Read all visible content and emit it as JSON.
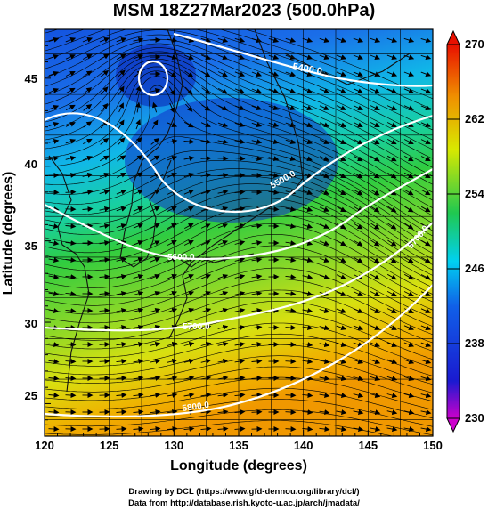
{
  "title": "MSM 18Z27Mar2023 (500.0hPa)",
  "x_axis": {
    "label": "Longitude (degrees)",
    "ticks": [
      "120",
      "125",
      "130",
      "135",
      "140",
      "145",
      "150"
    ],
    "range": [
      120,
      150
    ]
  },
  "y_axis": {
    "label": "Latitude  (degrees)",
    "ticks": [
      "25",
      "30",
      "35",
      "40",
      "45"
    ],
    "range": [
      23,
      48
    ]
  },
  "colorbar": {
    "ticks": [
      "230",
      "238",
      "246",
      "254",
      "262",
      "270"
    ],
    "range": [
      230,
      270
    ],
    "colors": [
      "#cc00cc",
      "#1020d0",
      "#00c8f0",
      "#20c850",
      "#d8e800",
      "#f08000",
      "#e81000"
    ]
  },
  "contour_labels": [
    "5400.0",
    "5500.0",
    "5600.0",
    "5700.0",
    "5700.0",
    "5800.0"
  ],
  "credits": {
    "line1": "Drawing by DCL (https://www.gfd-dennou.org/library/dcl/)",
    "line2": "Data from http://database.rish.kyoto-u.ac.jp/arch/jmadata/"
  }
}
